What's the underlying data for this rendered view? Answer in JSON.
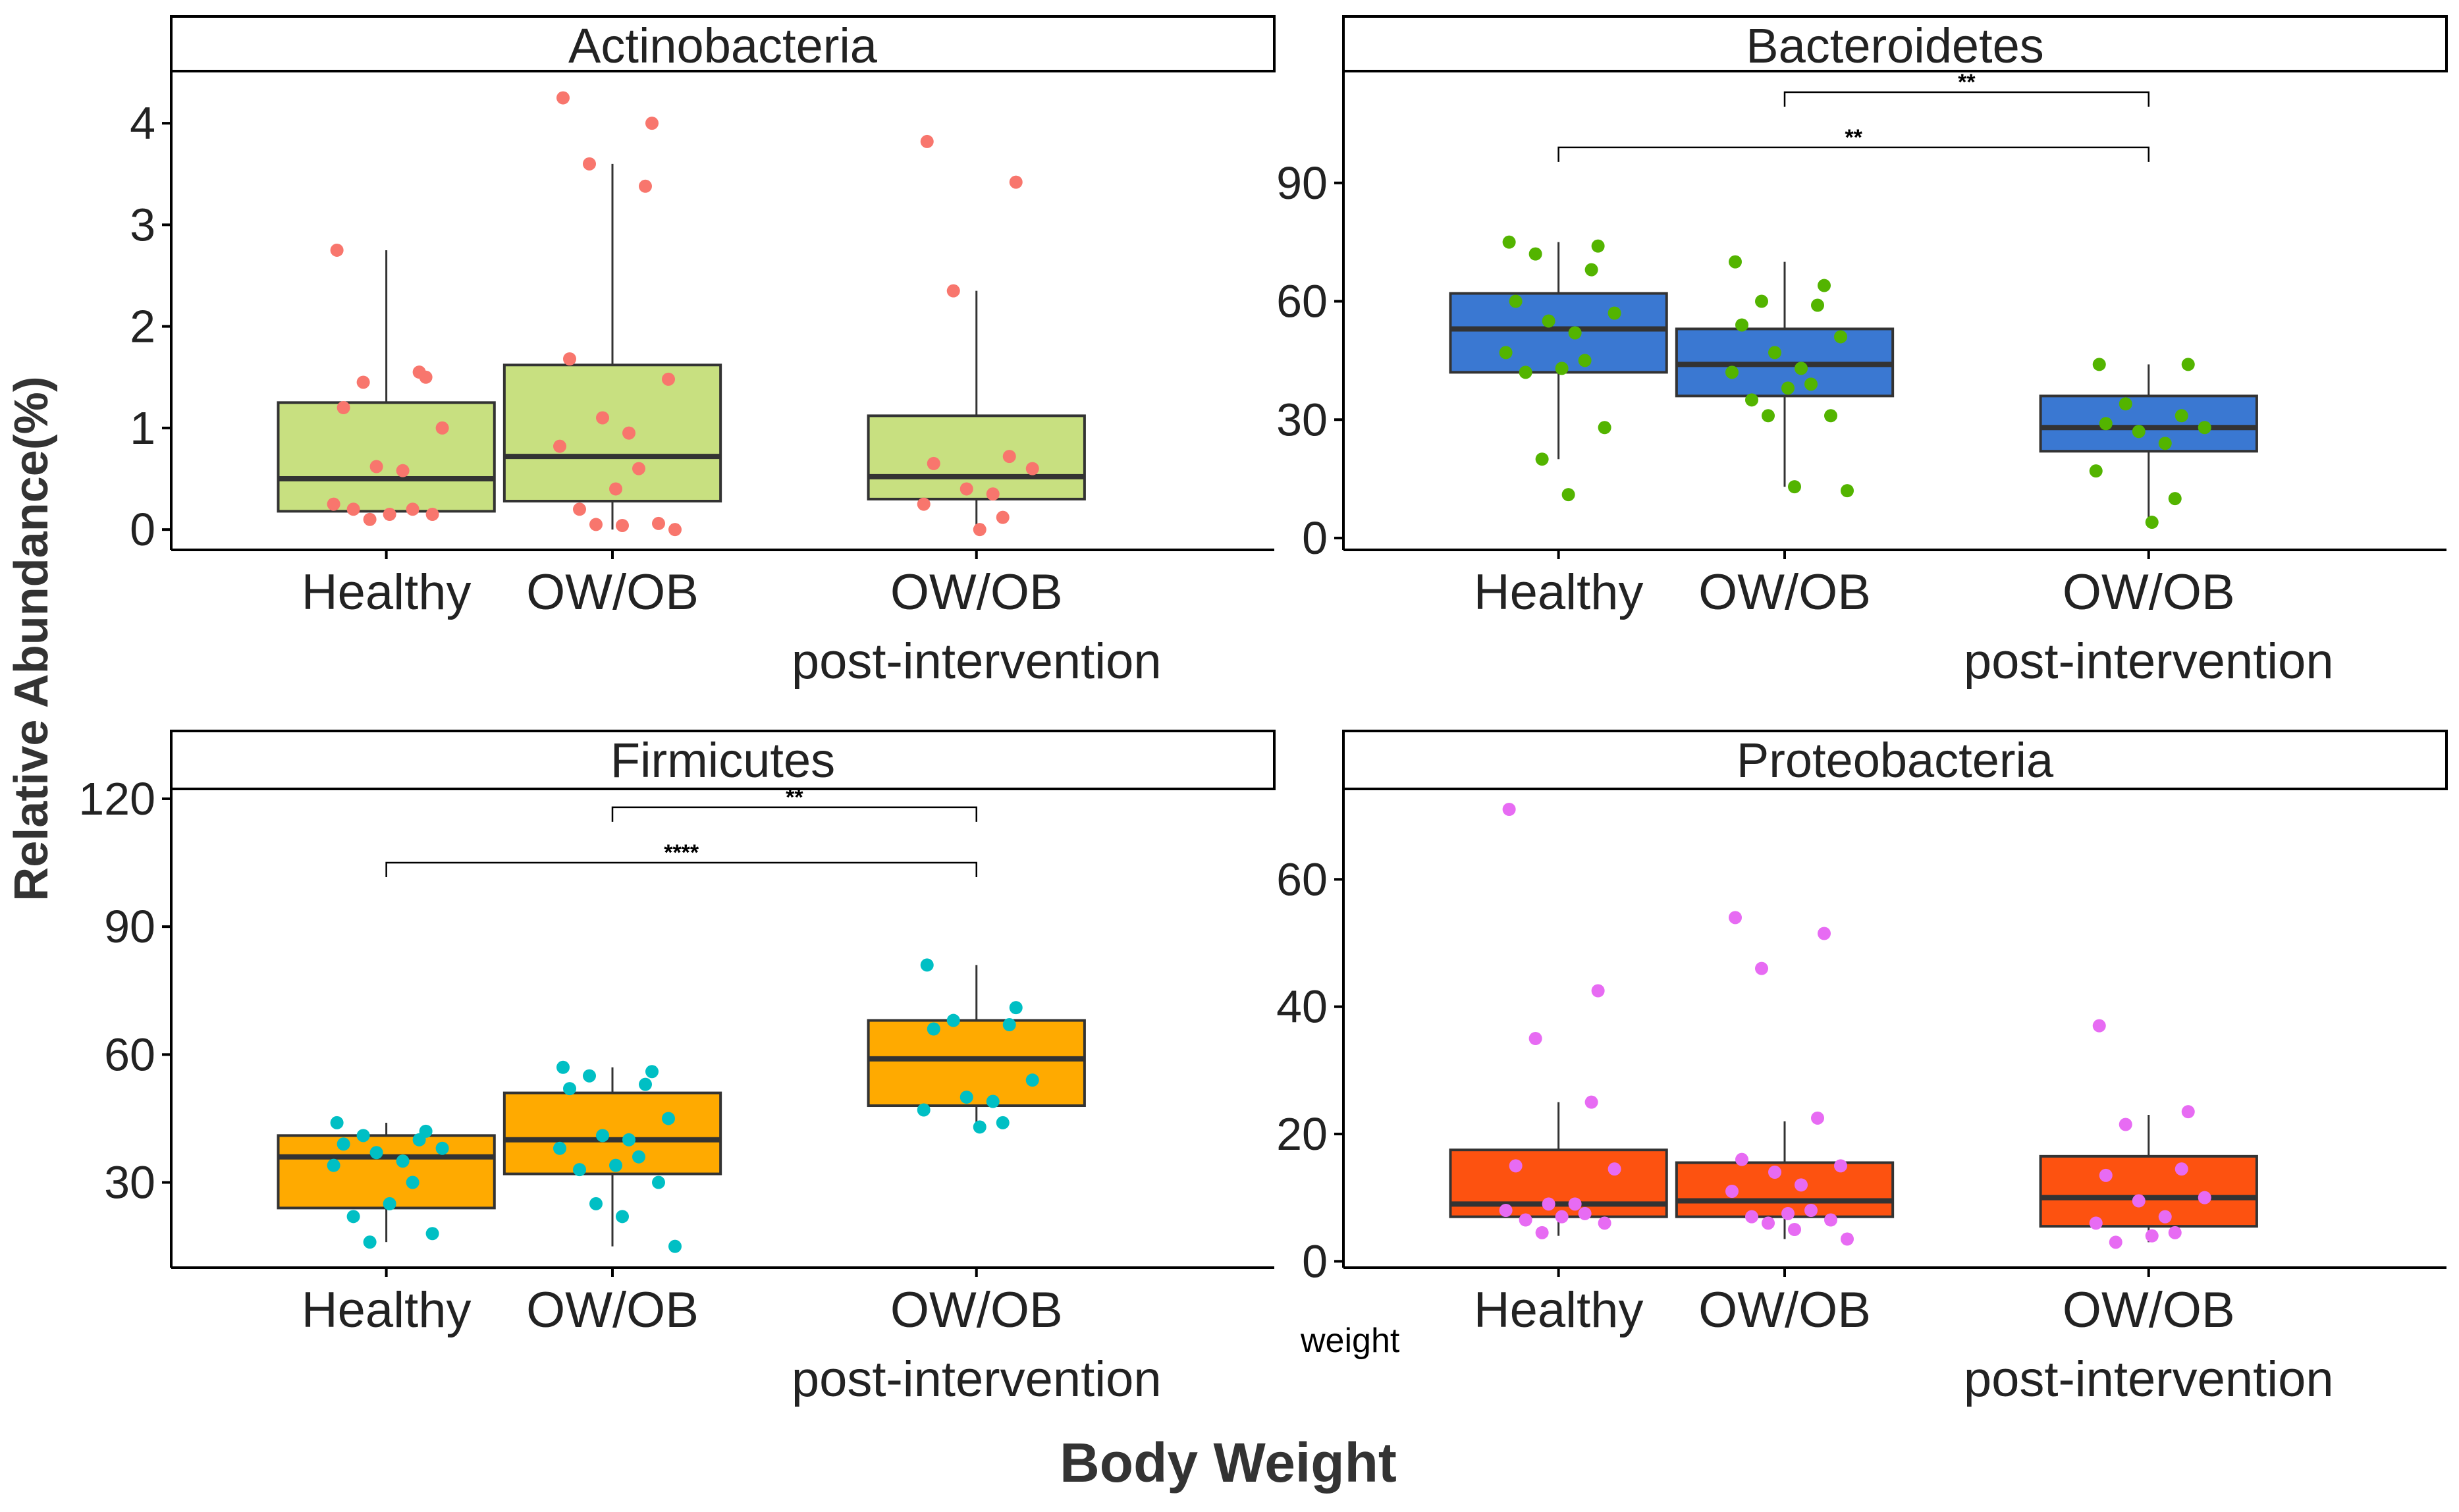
{
  "figure": {
    "ylabel": "Relative Abundance(%)",
    "xlabel": "Body Weight",
    "stray_label": "weight"
  },
  "colors": {
    "axis": "#000000",
    "text": "#222222",
    "box_line": "#333333",
    "median": "#333333"
  },
  "chart_data": [
    {
      "type": "box",
      "title": "Actinobacteria",
      "categories": [
        "Healthy",
        "OW/OB",
        "OW/OB\npost-intervention"
      ],
      "yticks": [
        0,
        1,
        2,
        3,
        4
      ],
      "ylim": [
        -0.2,
        4.5
      ],
      "box_color": "#c8e080",
      "point_color": "#f8766d",
      "boxes": [
        {
          "q1": 0.18,
          "median": 0.5,
          "q3": 1.25,
          "whisker_low": 0.1,
          "whisker_high": 2.75
        },
        {
          "q1": 0.28,
          "median": 0.72,
          "q3": 1.62,
          "whisker_low": 0.0,
          "whisker_high": 3.6
        },
        {
          "q1": 0.3,
          "median": 0.52,
          "q3": 1.12,
          "whisker_low": 0.0,
          "whisker_high": 2.35
        }
      ],
      "points": [
        [
          2.75,
          1.5,
          1.45,
          1.55,
          1.2,
          1.0,
          0.62,
          0.58,
          0.25,
          0.2,
          0.15,
          0.2,
          0.15,
          0.1
        ],
        [
          4.25,
          4.0,
          3.6,
          3.38,
          1.68,
          1.48,
          1.1,
          0.95,
          0.82,
          0.6,
          0.4,
          0.2,
          0.06,
          0.05,
          0.04,
          0.0
        ],
        [
          3.82,
          3.42,
          2.35,
          0.72,
          0.65,
          0.6,
          0.4,
          0.35,
          0.25,
          0.12,
          0.0
        ]
      ],
      "significance": []
    },
    {
      "type": "box",
      "title": "Bacteroidetes",
      "categories": [
        "Healthy",
        "OW/OB",
        "OW/OB\npost-intervention"
      ],
      "yticks": [
        0,
        30,
        60,
        90
      ],
      "ylim": [
        -3,
        118
      ],
      "box_color": "#3a78d2",
      "point_color": "#53b400",
      "boxes": [
        {
          "q1": 42,
          "median": 53,
          "q3": 62,
          "whisker_low": 20,
          "whisker_high": 75
        },
        {
          "q1": 36,
          "median": 44,
          "q3": 53,
          "whisker_low": 13,
          "whisker_high": 70
        },
        {
          "q1": 22,
          "median": 28,
          "q3": 36,
          "whisker_low": 4,
          "whisker_high": 44
        }
      ],
      "points": [
        [
          75,
          74,
          72,
          68,
          60,
          57,
          55,
          52,
          47,
          45,
          43,
          42,
          28,
          20,
          11
        ],
        [
          70,
          64,
          60,
          59,
          54,
          51,
          47,
          43,
          42,
          39,
          38,
          35,
          31,
          31,
          13,
          12
        ],
        [
          44,
          44,
          34,
          31,
          29,
          28,
          27,
          24,
          17,
          10,
          4
        ]
      ],
      "significance": [
        {
          "from": 1,
          "to": 2,
          "label": "**",
          "value": 113
        },
        {
          "from": 0,
          "to": 2,
          "label": "**",
          "value": 99
        }
      ]
    },
    {
      "type": "box",
      "title": "Firmicutes",
      "categories": [
        "Healthy",
        "OW/OB",
        "OW/OB\npost-intervention"
      ],
      "yticks": [
        30,
        60,
        90,
        120
      ],
      "ylim": [
        10,
        122
      ],
      "box_color": "#ffaa00",
      "point_color": "#00bfc4",
      "boxes": [
        {
          "q1": 24,
          "median": 36,
          "q3": 41,
          "whisker_low": 16,
          "whisker_high": 44
        },
        {
          "q1": 32,
          "median": 40,
          "q3": 51,
          "whisker_low": 15,
          "whisker_high": 57
        },
        {
          "q1": 48,
          "median": 59,
          "q3": 68,
          "whisker_low": 43,
          "whisker_high": 81
        }
      ],
      "points": [
        [
          44,
          42,
          41,
          40,
          39,
          38,
          37,
          35,
          34,
          30,
          25,
          22,
          18,
          16
        ],
        [
          57,
          56,
          55,
          53,
          52,
          45,
          41,
          40,
          38,
          36,
          34,
          33,
          30,
          25,
          22,
          15
        ],
        [
          81,
          71,
          68,
          67,
          66,
          54,
          50,
          49,
          47,
          44,
          43
        ]
      ],
      "significance": [
        {
          "from": 1,
          "to": 2,
          "label": "**",
          "value": 118
        },
        {
          "from": 0,
          "to": 2,
          "label": "****",
          "value": 105
        }
      ]
    },
    {
      "type": "box",
      "title": "Proteobacteria",
      "categories": [
        "Healthy",
        "OW/OB",
        "OW/OB\npost-intervention"
      ],
      "yticks": [
        0,
        20,
        40,
        60
      ],
      "ylim": [
        -1,
        74
      ],
      "box_color": "#fd5210",
      "point_color": "#e76bf3",
      "boxes": [
        {
          "q1": 7,
          "median": 9,
          "q3": 17.5,
          "whisker_low": 4,
          "whisker_high": 25
        },
        {
          "q1": 7,
          "median": 9.5,
          "q3": 15.5,
          "whisker_low": 3.5,
          "whisker_high": 22
        },
        {
          "q1": 5.5,
          "median": 10,
          "q3": 16.5,
          "whisker_low": 3,
          "whisker_high": 23
        }
      ],
      "points": [
        [
          71,
          42.5,
          35,
          25,
          15,
          14.5,
          9,
          9,
          8,
          7.5,
          7,
          6.5,
          6,
          4.5
        ],
        [
          54,
          51.5,
          46,
          22.5,
          16,
          15,
          14,
          12,
          11,
          8,
          7.5,
          7,
          6.5,
          6,
          5,
          3.5
        ],
        [
          37,
          23.5,
          21.5,
          14.5,
          13.5,
          10,
          9.5,
          7,
          6,
          4.5,
          4,
          3
        ]
      ],
      "significance": []
    }
  ]
}
